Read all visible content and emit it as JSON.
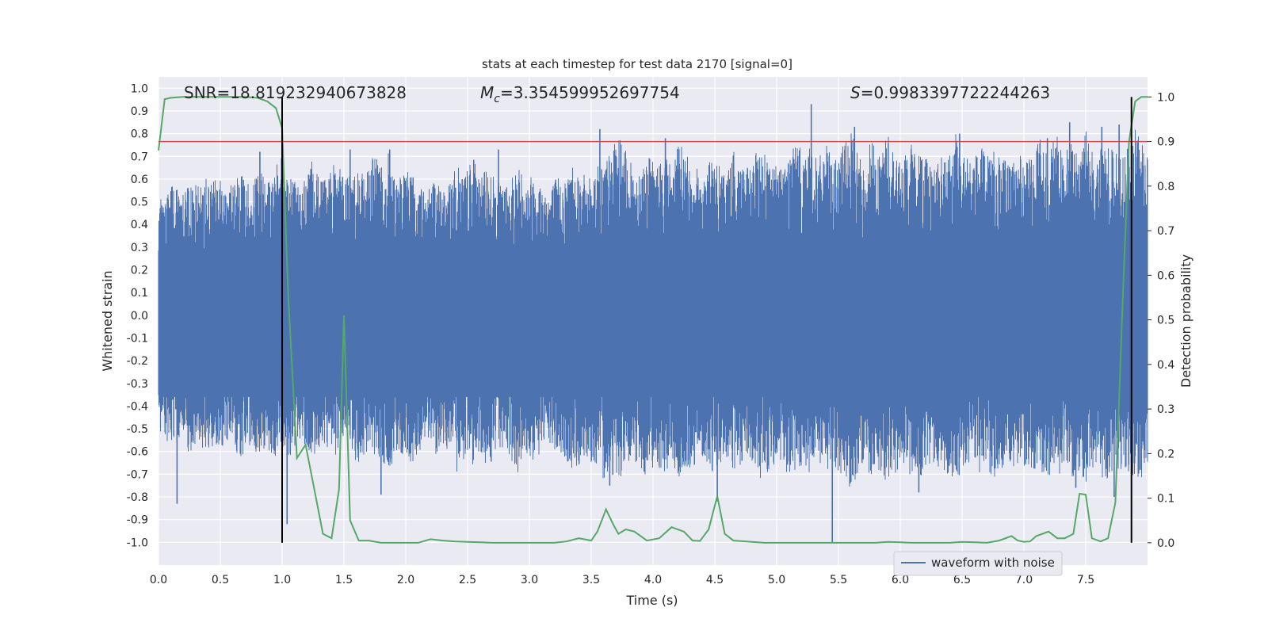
{
  "chart_data": {
    "type": "line",
    "title": "stats at each timestep for test data 2170 [signal=0]",
    "xlabel": "Time (s)",
    "ylabel": "Whitened strain",
    "y2label": "Detection probability",
    "xlim": [
      0.0,
      8.0
    ],
    "ylim": [
      -1.1,
      1.05
    ],
    "y2lim": [
      -0.05,
      1.045
    ],
    "xticks": [
      "0.0",
      "0.5",
      "1.0",
      "1.5",
      "2.0",
      "2.5",
      "3.0",
      "3.5",
      "4.0",
      "4.5",
      "5.0",
      "5.5",
      "6.0",
      "6.5",
      "7.0",
      "7.5"
    ],
    "yticks": [
      "1.0",
      "0.9",
      "0.8",
      "0.7",
      "0.6",
      "0.5",
      "0.4",
      "0.3",
      "0.2",
      "0.1",
      "0.0",
      "-0.1",
      "-0.2",
      "-0.3",
      "-0.4",
      "-0.5",
      "-0.6",
      "-0.7",
      "-0.8",
      "-0.9",
      "-1.0"
    ],
    "y2ticks": [
      "1.0",
      "0.9",
      "0.8",
      "0.7",
      "0.6",
      "0.5",
      "0.4",
      "0.3",
      "0.2",
      "0.1",
      "0.0"
    ],
    "annotations": {
      "snr": "SNR=18.819232940673828",
      "mc_symbol": "M",
      "mc_sub": "c",
      "mc_value": "=3.354599952697754",
      "s_symbol": "S",
      "s_value": "=0.9983397722244263"
    },
    "legend": {
      "label": "waveform with noise",
      "placement": "lower-right"
    },
    "threshold": 0.9,
    "vlines": [
      1.0,
      7.87
    ],
    "series": [
      {
        "name": "waveform with noise",
        "color": "#4c72b0",
        "envelope_upper": [
          0.52,
          0.55,
          0.58,
          0.55,
          0.6,
          0.57,
          0.62,
          0.58,
          0.65,
          0.55,
          0.6,
          0.62,
          0.58,
          0.68,
          0.6,
          0.64,
          0.72,
          0.62,
          0.58,
          0.6,
          0.68,
          0.63,
          0.6,
          0.7,
          0.63,
          0.62,
          0.68,
          0.6,
          0.73,
          0.65,
          0.72,
          0.6,
          0.62,
          0.66,
          0.6,
          0.55,
          0.62,
          0.55,
          0.6,
          0.66,
          0.62,
          0.72,
          0.6,
          0.66,
          0.6,
          0.56,
          0.62,
          0.66,
          0.6,
          0.64,
          0.58,
          0.56,
          0.62,
          0.6,
          0.68,
          0.64,
          0.6,
          0.66,
          0.68,
          0.72,
          0.8,
          0.72,
          0.64,
          0.68,
          0.7,
          0.66,
          0.72,
          0.66,
          0.78,
          0.7,
          0.66,
          0.62,
          0.7,
          0.66,
          0.64,
          0.72,
          0.7,
          0.64,
          0.72,
          0.75,
          0.66,
          0.68,
          0.7,
          0.78,
          0.72,
          0.74,
          0.68,
          0.76,
          0.68,
          0.72,
          0.83,
          0.75,
          0.66,
          0.8,
          0.7,
          0.82,
          0.72,
          0.68,
          0.76,
          0.72,
          0.74,
          0.66,
          0.7,
          0.7,
          0.8,
          0.72,
          0.68,
          0.72,
          0.76,
          0.74,
          0.7,
          0.66,
          0.72,
          0.68,
          0.7,
          0.8,
          0.72,
          0.82,
          0.7,
          0.76,
          0.72,
          0.83,
          0.7,
          0.74,
          0.74,
          0.72,
          0.7,
          0.8,
          0.86,
          0.72
        ],
        "envelope_lower": [
          -0.5,
          -0.55,
          -0.6,
          -0.52,
          -0.62,
          -0.55,
          -0.6,
          -0.58,
          -0.6,
          -0.55,
          -0.6,
          -0.64,
          -0.58,
          -0.62,
          -0.58,
          -0.66,
          -0.6,
          -0.64,
          -0.56,
          -0.58,
          -0.62,
          -0.6,
          -0.58,
          -0.62,
          -0.56,
          -0.6,
          -0.66,
          -0.6,
          -0.64,
          -0.62,
          -0.7,
          -0.6,
          -0.64,
          -0.66,
          -0.6,
          -0.56,
          -0.62,
          -0.58,
          -0.6,
          -0.7,
          -0.62,
          -0.66,
          -0.6,
          -0.68,
          -0.62,
          -0.58,
          -0.64,
          -0.7,
          -0.62,
          -0.66,
          -0.6,
          -0.58,
          -0.62,
          -0.64,
          -0.7,
          -0.66,
          -0.62,
          -0.68,
          -0.72,
          -0.7,
          -0.72,
          -0.7,
          -0.64,
          -0.72,
          -0.68,
          -0.66,
          -0.7,
          -0.66,
          -0.74,
          -0.7,
          -0.66,
          -0.62,
          -0.7,
          -0.66,
          -0.64,
          -0.7,
          -0.68,
          -0.64,
          -0.7,
          -0.74,
          -0.66,
          -0.68,
          -0.72,
          -0.7,
          -0.7,
          -0.72,
          -0.66,
          -0.7,
          -0.66,
          -0.7,
          -0.76,
          -0.72,
          -0.66,
          -0.74,
          -0.68,
          -0.74,
          -0.7,
          -0.66,
          -0.72,
          -0.7,
          -0.72,
          -0.66,
          -0.68,
          -0.7,
          -0.72,
          -0.7,
          -0.66,
          -0.7,
          -0.72,
          -0.72,
          -0.68,
          -0.66,
          -0.7,
          -0.66,
          -0.68,
          -0.72,
          -0.7,
          -0.74,
          -0.68,
          -0.72,
          -0.7,
          -0.74,
          -0.68,
          -0.72,
          -0.72,
          -0.7,
          -0.68,
          -0.72,
          -0.74,
          -0.7
        ],
        "spikes": [
          [
            0.15,
            -0.83
          ],
          [
            0.82,
            0.72
          ],
          [
            1.04,
            -0.92
          ],
          [
            1.55,
            0.73
          ],
          [
            1.8,
            -0.79
          ],
          [
            1.87,
            0.73
          ],
          [
            2.75,
            0.73
          ],
          [
            3.57,
            0.82
          ],
          [
            3.65,
            -0.75
          ],
          [
            4.1,
            0.78
          ],
          [
            4.52,
            -0.82
          ],
          [
            5.28,
            0.93
          ],
          [
            5.45,
            -1.0
          ],
          [
            5.63,
            0.83
          ],
          [
            6.15,
            -0.78
          ],
          [
            6.48,
            0.8
          ],
          [
            6.68,
            0.7
          ],
          [
            7.19,
            0.78
          ],
          [
            7.37,
            0.85
          ],
          [
            7.42,
            -0.76
          ],
          [
            7.63,
            0.83
          ],
          [
            7.73,
            -0.8
          ],
          [
            7.77,
            0.84
          ]
        ]
      },
      {
        "name": "",
        "color": "#55a868",
        "x": [
          0.0,
          0.05,
          0.1,
          0.2,
          0.3,
          0.4,
          0.5,
          0.6,
          0.7,
          0.8,
          0.88,
          0.95,
          1.0,
          1.05,
          1.12,
          1.19,
          1.26,
          1.33,
          1.4,
          1.46,
          1.5,
          1.55,
          1.62,
          1.7,
          1.8,
          1.9,
          2.0,
          2.1,
          2.2,
          2.3,
          2.4,
          2.5,
          2.6,
          2.7,
          2.8,
          2.9,
          3.0,
          3.1,
          3.2,
          3.3,
          3.4,
          3.5,
          3.55,
          3.62,
          3.68,
          3.72,
          3.78,
          3.85,
          3.95,
          4.05,
          4.15,
          4.25,
          4.32,
          4.38,
          4.45,
          4.52,
          4.58,
          4.65,
          4.7,
          4.8,
          4.9,
          5.0,
          5.1,
          5.2,
          5.3,
          5.4,
          5.5,
          5.6,
          5.7,
          5.8,
          5.9,
          6.0,
          6.1,
          6.2,
          6.3,
          6.4,
          6.5,
          6.6,
          6.7,
          6.8,
          6.9,
          6.95,
          7.0,
          7.05,
          7.1,
          7.2,
          7.27,
          7.33,
          7.4,
          7.45,
          7.5,
          7.55,
          7.62,
          7.68,
          7.74,
          7.8,
          7.85,
          7.9,
          7.95,
          8.0
        ],
        "values": [
          0.88,
          0.995,
          0.998,
          1.0,
          1.0,
          1.0,
          1.0,
          1.0,
          1.0,
          0.998,
          0.99,
          0.975,
          0.93,
          0.55,
          0.19,
          0.22,
          0.12,
          0.02,
          0.01,
          0.12,
          0.51,
          0.05,
          0.005,
          0.005,
          0.0,
          0.0,
          0.0,
          0.0,
          0.008,
          0.005,
          0.003,
          0.002,
          0.001,
          0.0,
          0.0,
          0.0,
          0.0,
          0.0,
          0.0,
          0.003,
          0.01,
          0.005,
          0.025,
          0.075,
          0.04,
          0.02,
          0.03,
          0.025,
          0.005,
          0.01,
          0.035,
          0.025,
          0.005,
          0.004,
          0.03,
          0.105,
          0.02,
          0.005,
          0.004,
          0.002,
          0.0,
          0.0,
          0.0,
          0.0,
          0.0,
          0.0,
          0.0,
          0.0,
          0.0,
          0.0,
          0.002,
          0.001,
          0.0,
          0.0,
          0.0,
          0.0,
          0.002,
          0.001,
          0.0,
          0.005,
          0.015,
          0.005,
          0.002,
          0.003,
          0.015,
          0.025,
          0.01,
          0.01,
          0.02,
          0.11,
          0.108,
          0.01,
          0.003,
          0.01,
          0.09,
          0.55,
          0.9,
          0.99,
          1.0,
          1.0
        ]
      },
      {
        "name": "",
        "color": "#c44e52",
        "values": [
          0.9
        ]
      }
    ]
  }
}
